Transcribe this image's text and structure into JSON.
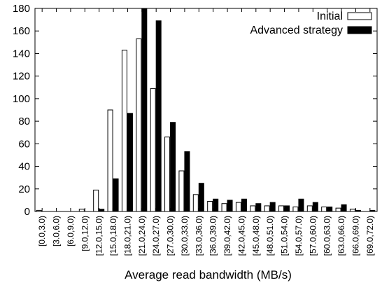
{
  "chart_data": {
    "type": "bar",
    "xlabel": "Average read bandwidth (MB/s)",
    "ylabel": "",
    "ylim": [
      0,
      180
    ],
    "yticks": [
      0,
      20,
      40,
      60,
      80,
      100,
      120,
      140,
      160,
      180
    ],
    "legend_position": "top-right",
    "grid": false,
    "categories": [
      "[0.0,3.0)",
      "[3.0,6.0)",
      "[6.0,9.0)",
      "[9.0,12.0)",
      "[12.0,15.0)",
      "[15.0,18.0)",
      "[18.0,21.0)",
      "[21.0,24.0)",
      "[24.0,27.0)",
      "[27.0,30.0)",
      "[30.0,33.0)",
      "[33.0,36.0)",
      "[36.0,39.0)",
      "[39.0,42.0)",
      "[42.0,45.0)",
      "[45.0,48.0)",
      "[48.0,51.0)",
      "[51.0,54.0)",
      "[54.0,57.0)",
      "[57.0,60.0)",
      "[60.0,63.0)",
      "[63.0,66.0)",
      "[66.0,69.0)",
      "[69.0,72.0)"
    ],
    "series": [
      {
        "name": "Initial",
        "color": "#ffffff",
        "values": [
          1,
          0,
          0,
          2,
          19,
          90,
          143,
          153,
          109,
          66,
          36,
          15,
          9,
          7,
          8,
          5,
          5,
          5,
          4,
          5,
          4,
          3,
          2,
          0
        ]
      },
      {
        "name": "Advanced strategy",
        "color": "#000000",
        "values": [
          0,
          0,
          0,
          0,
          2,
          29,
          87,
          180,
          169,
          79,
          53,
          25,
          11,
          10,
          11,
          7,
          8,
          5,
          11,
          8,
          4,
          6,
          1,
          1
        ]
      }
    ]
  }
}
